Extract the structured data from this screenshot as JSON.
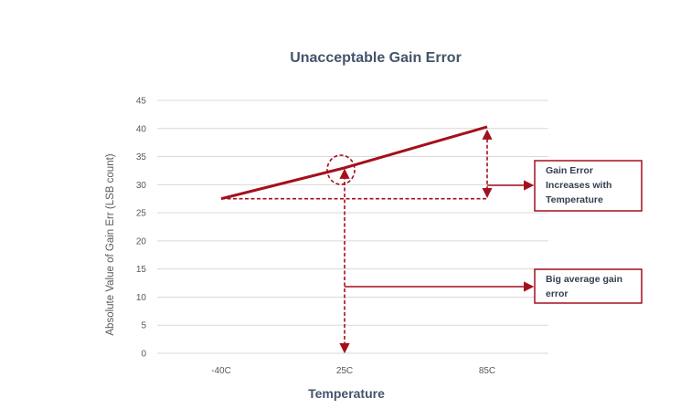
{
  "chart_data": {
    "type": "line",
    "title": "Unacceptable Gain Error",
    "xlabel": "Temperature",
    "ylabel": "Absolute Value of Gain Err (LSB count)",
    "categories": [
      "-40C",
      "25C",
      "85C"
    ],
    "series": [
      {
        "values": [
          27.5,
          33,
          40.3
        ],
        "color": "#a50f1c"
      }
    ],
    "yticks": [
      0,
      5,
      10,
      15,
      20,
      25,
      30,
      35,
      40,
      45
    ],
    "ylim": [
      0,
      45
    ],
    "grid": "horizontal",
    "annotations": [
      {
        "lines": [
          "Gain Error",
          "Increases with",
          "Temperature"
        ]
      },
      {
        "lines": [
          "Big average gain",
          "error"
        ]
      }
    ],
    "colors": {
      "accent": "#a50f1c",
      "grid": "#d9d9d9",
      "text": "#44546a"
    }
  }
}
